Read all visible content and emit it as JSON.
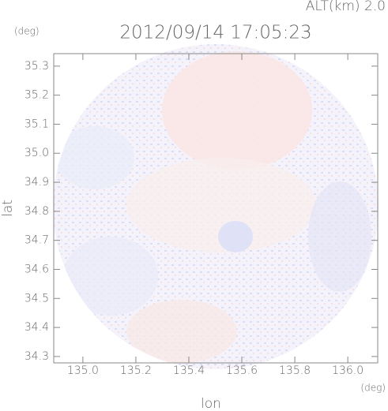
{
  "chart_data": {
    "type": "radar-map",
    "title": "2012/09/14 17:05:23",
    "annotation": "ALT(km) 2.0",
    "y_unit": "(deg)",
    "x_unit": "(deg)",
    "xlabel": "lon",
    "ylabel": "lat",
    "xlim": [
      134.89,
      136.113
    ],
    "ylim": [
      34.278,
      35.343
    ],
    "xticks": [
      {
        "value": 135.0,
        "label": "135.0"
      },
      {
        "value": 135.2,
        "label": "135.2"
      },
      {
        "value": 135.4,
        "label": "135.4"
      },
      {
        "value": 135.6,
        "label": "135.6"
      },
      {
        "value": 135.8,
        "label": "135.8"
      },
      {
        "value": 136.0,
        "label": "136.0"
      }
    ],
    "yticks": [
      {
        "value": 34.3,
        "label": "34.3"
      },
      34.4,
      34.5,
      34.6,
      34.7,
      34.8,
      34.9,
      {
        "value": 35.0,
        "label": "35.0"
      },
      35.1,
      35.2,
      35.3
    ]
  }
}
